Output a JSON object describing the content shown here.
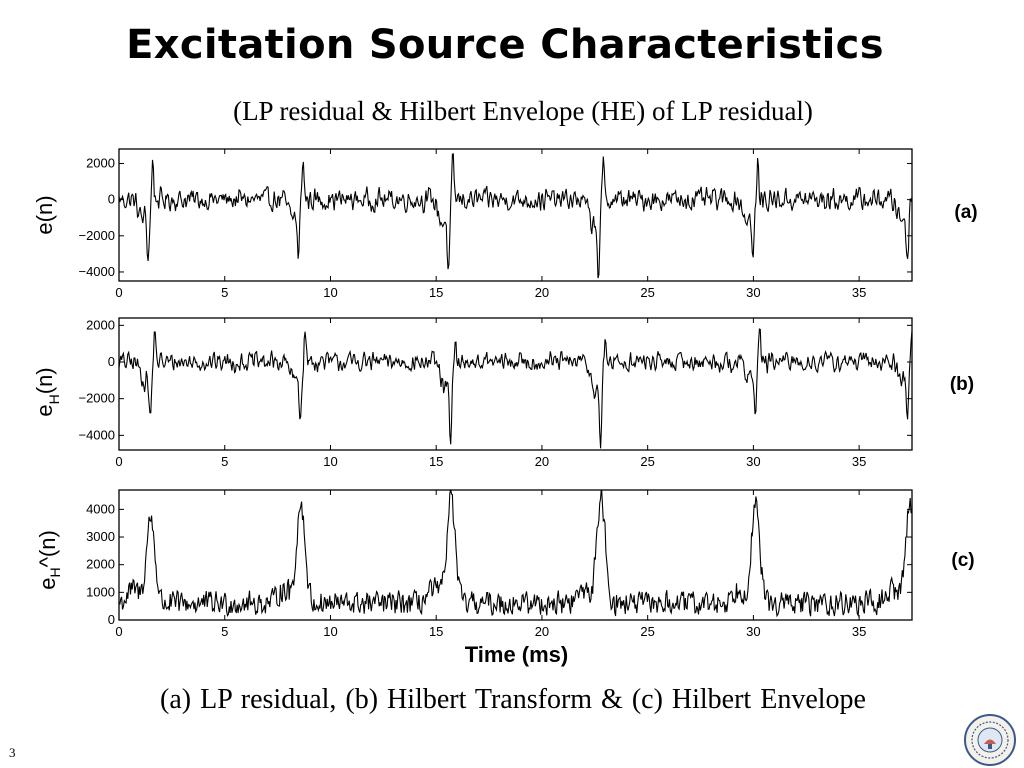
{
  "slide": {
    "title": "Excitation Source Characteristics",
    "subtitle": "(LP residual & Hilbert Envelope (HE) of LP residual)",
    "caption": "(a)  LP residual, (b) Hilbert Transform  &  (c) Hilbert Envelope",
    "page_number": "3",
    "logo_icon": "institute-seal-icon"
  },
  "chart_data": [
    {
      "type": "line",
      "panel_label": "(a)",
      "ylabel": "e(n)",
      "xlabel": "",
      "xlim": [
        0,
        37.5
      ],
      "ylim": [
        -4500,
        2800
      ],
      "xticks": [
        0,
        5,
        10,
        15,
        20,
        25,
        30,
        35
      ],
      "yticks": [
        -4000,
        -2000,
        0,
        2000
      ],
      "ytick_labels": [
        "−4000",
        "−2000",
        "0",
        "2000"
      ],
      "grid": false,
      "color": "#000000",
      "events": [
        {
          "t": 1.5,
          "peak": 2200,
          "trough": -3000
        },
        {
          "t": 8.6,
          "peak": 2600,
          "trough": -2900
        },
        {
          "t": 15.7,
          "peak": 2500,
          "trough": -3800
        },
        {
          "t": 22.8,
          "peak": 2100,
          "trough": -4000
        },
        {
          "t": 30.1,
          "peak": 2000,
          "trough": -3200
        },
        {
          "t": 37.4,
          "peak": 300,
          "trough": -3100
        }
      ],
      "noise_amplitude": 750,
      "x": [
        0,
        0.5,
        1,
        1.5,
        2,
        2.5,
        3,
        3.5,
        4,
        4.5,
        5,
        5.5,
        6,
        6.5,
        7,
        7.5,
        8,
        8.5,
        9,
        9.5,
        10,
        10.5,
        11,
        11.5,
        12,
        12.5,
        13,
        13.5,
        14,
        14.5,
        15,
        15.5,
        16,
        16.5,
        17,
        17.5,
        18,
        18.5,
        19,
        19.5,
        20,
        20.5,
        21,
        21.5,
        22,
        22.5,
        23,
        23.5,
        24,
        24.5,
        25,
        25.5,
        26,
        26.5,
        27,
        27.5,
        28,
        28.5,
        29,
        29.5,
        30,
        30.5,
        31,
        31.5,
        32,
        32.5,
        33,
        33.5,
        34,
        34.5,
        35,
        35.5,
        36,
        36.5,
        37,
        37.5
      ],
      "y": [
        400,
        300,
        500,
        -800,
        -500,
        200,
        -100,
        600,
        -300,
        200,
        100,
        -100,
        300,
        -200,
        200,
        400,
        -600,
        500,
        -300,
        600,
        -400,
        300,
        200,
        -100,
        500,
        -200,
        600,
        200,
        -300,
        400,
        -200,
        -1500,
        100,
        -400,
        300,
        -200,
        200,
        -100,
        300,
        -200,
        100,
        400,
        -300,
        500,
        -400,
        300,
        -200,
        600,
        -300,
        400,
        -200,
        300,
        -100,
        500,
        -200,
        300,
        100,
        -200,
        400,
        -1300,
        -800,
        300,
        100,
        -200,
        200,
        -100,
        100,
        -300,
        200,
        -100,
        300,
        -200,
        100,
        200,
        -300,
        -3100
      ]
    },
    {
      "type": "line",
      "panel_label": "(b)",
      "ylabel": "e_H(n)",
      "xlabel": "",
      "xlim": [
        0,
        37.5
      ],
      "ylim": [
        -4800,
        2400
      ],
      "xticks": [
        0,
        5,
        10,
        15,
        20,
        25,
        30,
        35
      ],
      "yticks": [
        -4000,
        -2000,
        0,
        2000
      ],
      "ytick_labels": [
        "−4000",
        "−2000",
        "0",
        "2000"
      ],
      "grid": false,
      "color": "#000000",
      "events": [
        {
          "t": 1.6,
          "peak": 1900,
          "trough": -2900
        },
        {
          "t": 8.7,
          "peak": 1800,
          "trough": -2900
        },
        {
          "t": 15.8,
          "peak": 900,
          "trough": -4300
        },
        {
          "t": 22.9,
          "peak": 1200,
          "trough": -4400
        },
        {
          "t": 30.2,
          "peak": 1900,
          "trough": -2400
        },
        {
          "t": 37.4,
          "peak": 1500,
          "trough": -2600
        }
      ],
      "noise_amplitude": 650,
      "x": [
        0,
        0.5,
        1,
        1.5,
        2,
        2.5,
        3,
        3.5,
        4,
        4.5,
        5,
        5.5,
        6,
        6.5,
        7,
        7.5,
        8,
        8.5,
        9,
        9.5,
        10,
        10.5,
        11,
        11.5,
        12,
        12.5,
        13,
        13.5,
        14,
        14.5,
        15,
        15.5,
        16,
        16.5,
        17,
        17.5,
        18,
        18.5,
        19,
        19.5,
        20,
        20.5,
        21,
        21.5,
        22,
        22.5,
        23,
        23.5,
        24,
        24.5,
        25,
        25.5,
        26,
        26.5,
        27,
        27.5,
        28,
        28.5,
        29,
        29.5,
        30,
        30.5,
        31,
        31.5,
        32,
        32.5,
        33,
        33.5,
        34,
        34.5,
        35,
        35.5,
        36,
        36.5,
        37,
        37.5
      ],
      "y": [
        100,
        200,
        400,
        -1200,
        -300,
        100,
        300,
        -200,
        400,
        200,
        -100,
        300,
        -300,
        200,
        100,
        700,
        900,
        -1500,
        -500,
        300,
        -200,
        400,
        -300,
        500,
        -100,
        200,
        300,
        -400,
        600,
        200,
        900,
        -3500,
        -400,
        200,
        -100,
        300,
        -200,
        400,
        -300,
        200,
        100,
        -200,
        400,
        -300,
        200,
        500,
        -300,
        -1000,
        200,
        -300,
        400,
        300,
        -200,
        500,
        -300,
        400,
        600,
        -200,
        700,
        1200,
        -900,
        200,
        -100,
        300,
        -200,
        100,
        300,
        -100,
        200,
        400,
        -100,
        300,
        200,
        500,
        1200,
        -2600
      ]
    },
    {
      "type": "line",
      "panel_label": "(c)",
      "ylabel": "e^_H(n)",
      "xlabel": "Time (ms)",
      "xlim": [
        0,
        37.5
      ],
      "ylim": [
        0,
        4700
      ],
      "xticks": [
        0,
        5,
        10,
        15,
        20,
        25,
        30,
        35
      ],
      "yticks": [
        0,
        1000,
        2000,
        3000,
        4000
      ],
      "ytick_labels": [
        "0",
        "1000",
        "2000",
        "3000",
        "4000"
      ],
      "grid": false,
      "color": "#000000",
      "events": [
        {
          "t": 1.5,
          "peak": 3700
        },
        {
          "t": 8.6,
          "peak": 4200
        },
        {
          "t": 15.7,
          "peak": 4400
        },
        {
          "t": 22.8,
          "peak": 4500
        },
        {
          "t": 30.1,
          "peak": 4100
        },
        {
          "t": 37.4,
          "peak": 4200
        }
      ],
      "noise_floor": 600,
      "noise_amplitude": 500,
      "x": [
        0,
        0.5,
        1,
        1.5,
        2,
        2.5,
        3,
        3.5,
        4,
        4.5,
        5,
        5.5,
        6,
        6.5,
        7,
        7.5,
        8,
        8.5,
        9,
        9.5,
        10,
        10.5,
        11,
        11.5,
        12,
        12.5,
        13,
        13.5,
        14,
        14.5,
        15,
        15.5,
        16,
        16.5,
        17,
        17.5,
        18,
        18.5,
        19,
        19.5,
        20,
        20.5,
        21,
        21.5,
        22,
        22.5,
        23,
        23.5,
        24,
        24.5,
        25,
        25.5,
        26,
        26.5,
        27,
        27.5,
        28,
        28.5,
        29,
        29.5,
        30,
        30.5,
        31,
        31.5,
        32,
        32.5,
        33,
        33.5,
        34,
        34.5,
        35,
        35.5,
        36,
        36.5,
        37,
        37.5
      ],
      "y": [
        600,
        1100,
        1600,
        3700,
        1200,
        700,
        500,
        800,
        600,
        900,
        500,
        700,
        400,
        600,
        500,
        800,
        1300,
        4200,
        1500,
        700,
        500,
        900,
        600,
        800,
        400,
        700,
        500,
        900,
        600,
        800,
        1200,
        4400,
        1600,
        700,
        500,
        800,
        600,
        700,
        500,
        900,
        600,
        500,
        800,
        1300,
        1500,
        1900,
        4500,
        1600,
        800,
        600,
        900,
        1100,
        1400,
        1800,
        1200,
        900,
        1000,
        1500,
        1800,
        2100,
        4100,
        1400,
        600,
        500,
        800,
        700,
        500,
        600,
        400,
        700,
        500,
        800,
        600,
        900,
        1900,
        4200
      ]
    }
  ]
}
